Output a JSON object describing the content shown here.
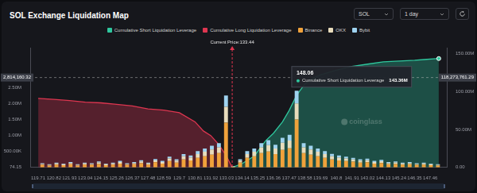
{
  "header": {
    "title": "SOL Exchange Liquidation Map",
    "controls": [
      "SOL",
      "1 day"
    ]
  },
  "chart_data": {
    "type": "bar",
    "stacked": true,
    "grid": false,
    "legend": "top",
    "xlim": [
      119.71,
      148.06
    ],
    "xticks": [
      119.71,
      120.82,
      121.93,
      123.04,
      124.15,
      125.26,
      126.37,
      127.48,
      128.59,
      129.7,
      130.81,
      131.92,
      133.03,
      134.14,
      135.25,
      136.36,
      137.47,
      138.58,
      139.69,
      140.8,
      141.91,
      143.02,
      144.13,
      145.24,
      146.35,
      147.46
    ],
    "ylim": [
      74.15,
      3750000
    ],
    "yticks": [
      {
        "value": 74.15,
        "label": "74.15"
      },
      {
        "value": 500000,
        "label": "500.00K"
      },
      {
        "value": 1000000,
        "label": "1.00M"
      },
      {
        "value": 1500000,
        "label": "1.50M"
      },
      {
        "value": 2000000,
        "label": "2.00M"
      },
      {
        "value": 2500000,
        "label": "2.50M"
      }
    ],
    "y2lim": [
      0,
      157690000
    ],
    "y2ticks": [
      {
        "value": 0,
        "label": "0.00"
      },
      {
        "value": 50000000,
        "label": "50.00M"
      },
      {
        "value": 100000000,
        "label": "100.00M"
      },
      {
        "value": 150000000,
        "label": "150.00M"
      }
    ],
    "x": [
      120,
      120.5,
      121,
      121.5,
      122,
      122.5,
      123,
      123.5,
      124,
      124.5,
      125,
      125.5,
      126,
      126.5,
      127,
      127.5,
      128,
      128.5,
      129,
      129.5,
      130,
      130.5,
      131,
      131.5,
      132,
      132.5,
      133,
      133.5,
      134,
      134.5,
      135,
      135.5,
      136,
      136.5,
      137,
      137.5,
      138,
      138.5,
      139,
      139.5,
      140,
      140.5,
      141,
      141.5,
      142,
      142.5,
      143,
      143.5,
      144,
      144.5,
      145,
      145.5,
      146,
      146.5,
      147,
      147.5,
      148
    ],
    "series": [
      {
        "name": "Cumulative Short Liquidation Leverage",
        "type": "line",
        "axis": "y2",
        "color": "#2fc79e",
        "x": [
          133.44,
          134.14,
          135.0,
          135.8,
          136.36,
          137.0,
          137.47,
          138.0,
          138.58,
          139.2,
          139.69,
          140.8,
          141.91,
          143.02,
          144.13,
          145.24,
          146.35,
          147.0,
          148.06
        ],
        "values": [
          0,
          5000000,
          15000000,
          35000000,
          45000000,
          60000000,
          75000000,
          95000000,
          110000000,
          118000000,
          122000000,
          128000000,
          133000000,
          136000000,
          139000000,
          140000000,
          141000000,
          142000000,
          143360000
        ]
      },
      {
        "name": "Cumulative Long Liquidation Leverage",
        "type": "line",
        "axis": "y2",
        "color": "#de3650",
        "x": [
          119.71,
          120.82,
          121.93,
          123.04,
          124.15,
          125.26,
          126.37,
          127.48,
          128.59,
          129.7,
          130.81,
          131.4,
          131.92,
          132.5,
          133.03,
          133.44
        ],
        "values": [
          91000000,
          89500000,
          88000000,
          86000000,
          85000000,
          83000000,
          81000000,
          77000000,
          75500000,
          72000000,
          60000000,
          48000000,
          42000000,
          30000000,
          15000000,
          0
        ]
      },
      {
        "name": "Binance",
        "type": "bar",
        "color": "#f0a23b",
        "values": [
          80000,
          60000,
          90000,
          70000,
          100000,
          60000,
          90000,
          80000,
          110000,
          70000,
          90000,
          120000,
          80000,
          100000,
          130000,
          90000,
          160000,
          120000,
          200000,
          150000,
          250000,
          220000,
          300000,
          350000,
          400000,
          450000,
          1400000,
          20000,
          150000,
          300000,
          350000,
          450000,
          500000,
          420000,
          550000,
          600000,
          1500000,
          450000,
          400000,
          350000,
          300000,
          250000,
          220000,
          200000,
          180000,
          150000,
          160000,
          120000,
          140000,
          100000,
          110000,
          90000,
          100000,
          80000,
          90000,
          70000,
          60000
        ]
      },
      {
        "name": "OKX",
        "type": "bar",
        "color": "#e8dcbc",
        "values": [
          30000,
          25000,
          35000,
          30000,
          40000,
          25000,
          35000,
          30000,
          45000,
          30000,
          35000,
          50000,
          30000,
          40000,
          55000,
          35000,
          60000,
          50000,
          80000,
          60000,
          100000,
          90000,
          120000,
          140000,
          160000,
          180000,
          500000,
          10000,
          60000,
          120000,
          140000,
          180000,
          200000,
          170000,
          220000,
          240000,
          500000,
          180000,
          160000,
          140000,
          120000,
          100000,
          90000,
          80000,
          70000,
          60000,
          65000,
          50000,
          55000,
          40000,
          45000,
          35000,
          40000,
          30000,
          35000,
          30000,
          25000
        ]
      },
      {
        "name": "Bybit",
        "type": "bar",
        "color": "#9fd3f0",
        "values": [
          20000,
          15000,
          25000,
          20000,
          30000,
          15000,
          25000,
          20000,
          30000,
          20000,
          25000,
          35000,
          20000,
          30000,
          40000,
          25000,
          45000,
          35000,
          60000,
          45000,
          70000,
          65000,
          90000,
          100000,
          120000,
          130000,
          350000,
          8000,
          45000,
          90000,
          100000,
          130000,
          150000,
          120000,
          160000,
          180000,
          400000,
          130000,
          120000,
          100000,
          90000,
          75000,
          65000,
          60000,
          50000,
          45000,
          50000,
          35000,
          40000,
          30000,
          35000,
          25000,
          30000,
          20000,
          25000,
          20000,
          18000
        ]
      }
    ],
    "annotations": [
      {
        "x": 133.44,
        "label": "Current Price:133.44"
      }
    ],
    "crosshair": {
      "y": 2814160.32,
      "y_label": "2,814,160.32",
      "y2": 118273761.29,
      "y2_label": "118,273,761.29"
    },
    "tooltip": {
      "x": 148.06,
      "title": "148.06",
      "series": "Cumulative Short Liquidation Leverage",
      "value": 143360000,
      "value_label": "143.36M"
    },
    "watermark": "coinglass"
  }
}
